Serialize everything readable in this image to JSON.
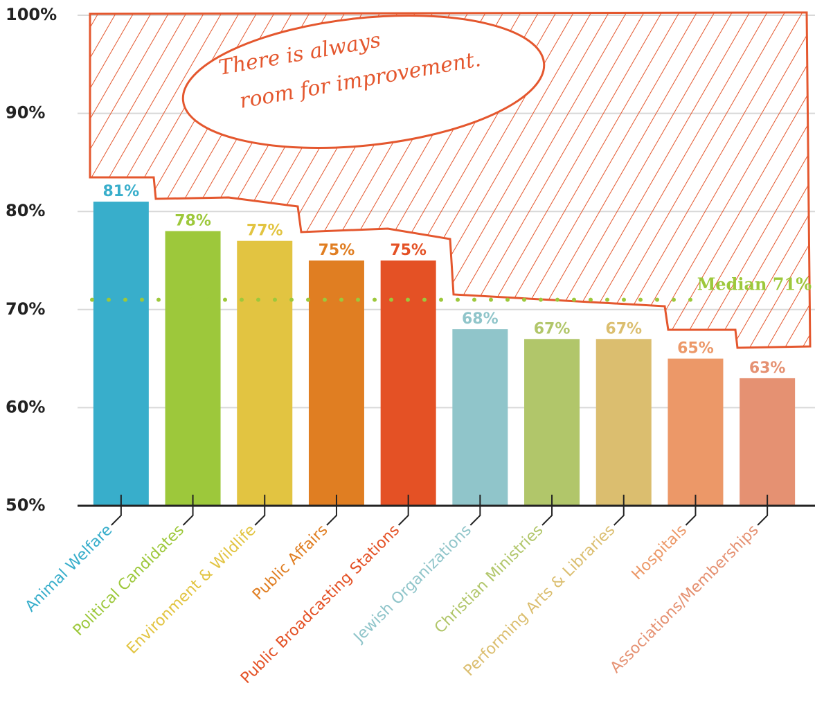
{
  "chart_data": {
    "type": "bar",
    "categories": [
      "Animal Welfare",
      "Political Candidates",
      "Environment & Wildlife",
      "Public Affairs",
      "Public Broadcasting Stations",
      "Jewish Organizations",
      "Christian Ministries",
      "Performing Arts & Libraries",
      "Hospitals",
      "Associations/Memberships"
    ],
    "values": [
      81,
      78,
      77,
      75,
      75,
      68,
      67,
      67,
      65,
      63
    ],
    "value_labels": [
      "81%",
      "78%",
      "77%",
      "75%",
      "75%",
      "68%",
      "67%",
      "67%",
      "65%",
      "63%"
    ],
    "colors": [
      "#38aecb",
      "#9dc83b",
      "#e2c441",
      "#e07e22",
      "#e45125",
      "#90c5ca",
      "#b1c66a",
      "#dbbe6f",
      "#ec9868",
      "#e59172"
    ],
    "ylim": [
      50,
      100
    ],
    "yticks": [
      {
        "value": 50,
        "label": "50%"
      },
      {
        "value": 60,
        "label": "60%"
      },
      {
        "value": 70,
        "label": "70%"
      },
      {
        "value": 80,
        "label": "80%"
      },
      {
        "value": 90,
        "label": "90%"
      },
      {
        "value": 100,
        "label": "100%"
      }
    ],
    "grid": true,
    "median": {
      "value": 71,
      "label": "Median 71%",
      "color": "#9dc83b"
    },
    "annotation": {
      "lines": [
        "There is always",
        "room for improvement."
      ],
      "color": "#e4572e"
    }
  }
}
